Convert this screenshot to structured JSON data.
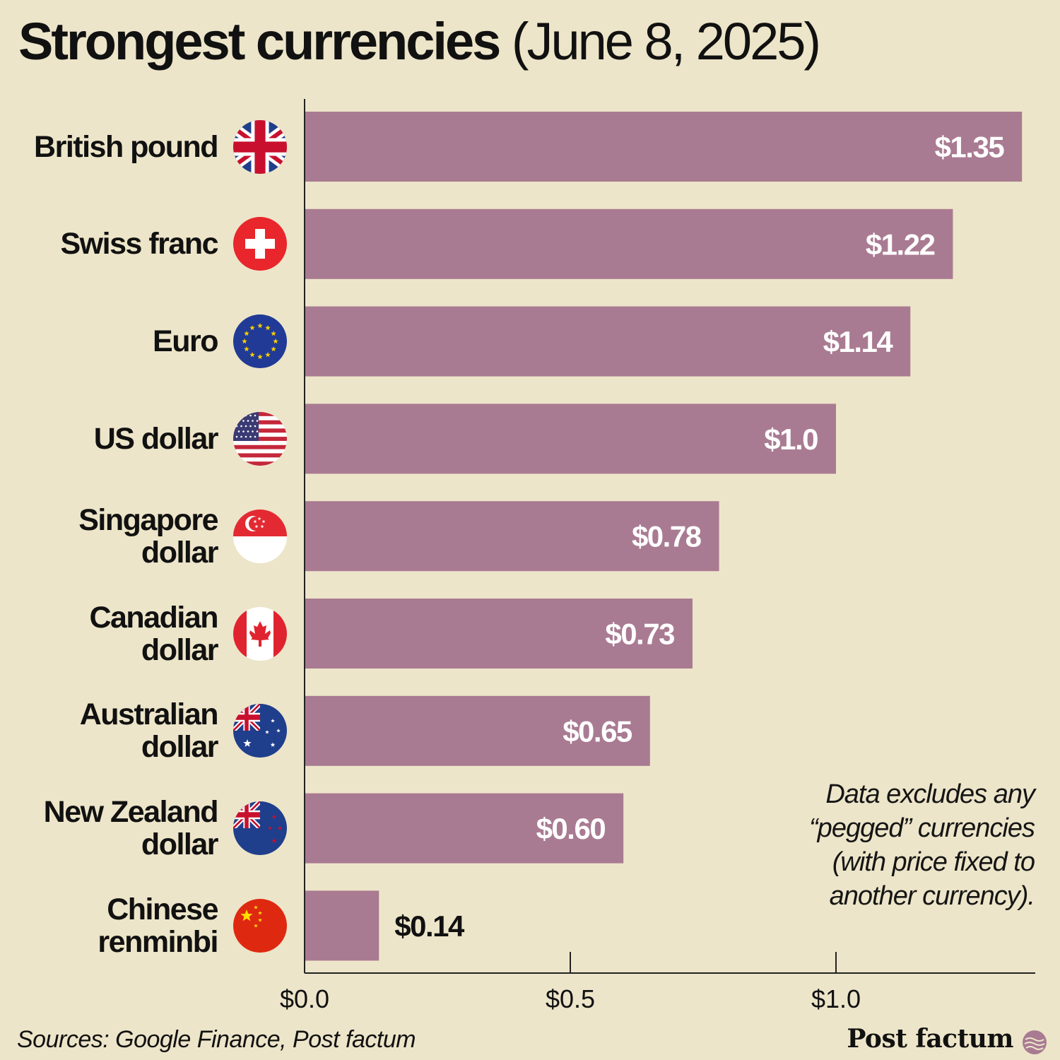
{
  "title": {
    "bold": "Strongest currencies",
    "light": "(June 8, 2025)"
  },
  "colors": {
    "background": "#ede5c9",
    "bar": "#a97b92",
    "axis": "#222222",
    "inside_label": "#ffffff",
    "outside_label": "#111111"
  },
  "chart_data": {
    "type": "bar",
    "orientation": "horizontal",
    "title": "Strongest currencies (June 8, 2025)",
    "xlabel": "",
    "ylabel": "",
    "xlim": [
      0,
      1.375
    ],
    "x_ticks": [
      0.0,
      0.5,
      1.0
    ],
    "x_tick_labels": [
      "$0.0",
      "$0.5",
      "$1.0"
    ],
    "grid": false,
    "categories": [
      {
        "label": [
          "British pound"
        ],
        "flag": "uk-flag-icon"
      },
      {
        "label": [
          "Swiss franc"
        ],
        "flag": "switzerland-flag-icon"
      },
      {
        "label": [
          "Euro"
        ],
        "flag": "eu-flag-icon"
      },
      {
        "label": [
          "US dollar"
        ],
        "flag": "us-flag-icon"
      },
      {
        "label": [
          "Singapore",
          "dollar"
        ],
        "flag": "singapore-flag-icon"
      },
      {
        "label": [
          "Canadian",
          "dollar"
        ],
        "flag": "canada-flag-icon"
      },
      {
        "label": [
          "Australian",
          "dollar"
        ],
        "flag": "australia-flag-icon"
      },
      {
        "label": [
          "New Zealand",
          "dollar"
        ],
        "flag": "new-zealand-flag-icon"
      },
      {
        "label": [
          "Chinese",
          "renminbi"
        ],
        "flag": "china-flag-icon"
      }
    ],
    "values": [
      1.35,
      1.22,
      1.14,
      1.0,
      0.78,
      0.73,
      0.65,
      0.6,
      0.14
    ],
    "value_labels": [
      "$1.35",
      "$1.22",
      "$1.14",
      "$1.0",
      "$0.78",
      "$0.73",
      "$0.65",
      "$0.60",
      "$0.14"
    ]
  },
  "note": [
    "Data excludes any",
    "“pegged” currencies",
    "(with price fixed to",
    "another currency)."
  ],
  "source": "Sources: Google Finance, Post factum",
  "brand": {
    "name": "Post factum",
    "logo": "post-factum-logo-icon"
  }
}
